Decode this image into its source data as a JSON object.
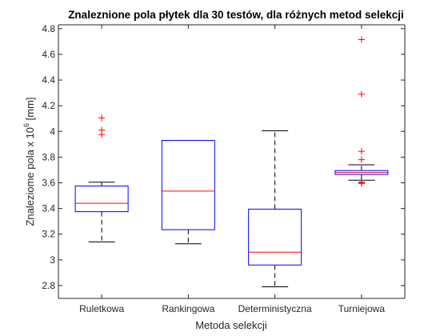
{
  "chart_data": {
    "type": "boxplot",
    "title": "Znaleznione pola płytek dla 30 testów, dla różnych metod selekcji",
    "xlabel": "Metoda selekcji",
    "ylabel_main": "Znaleziome pola x 10",
    "ylabel_exponent": "6",
    "ylabel_unit": " [mm]",
    "ylim": [
      2.7,
      4.83
    ],
    "yticks": [
      "2.8",
      "3",
      "3.2",
      "3.4",
      "3.6",
      "3.8",
      "4",
      "4.2",
      "4.4",
      "4.6",
      "4.8"
    ],
    "grid": false,
    "colors": {
      "box": "#0000ff",
      "median": "#ff0000",
      "whisker": "#000000",
      "outlier": "#ff0000"
    },
    "categories": [
      "Ruletkowa",
      "Rankingowa",
      "Deterministyczna",
      "Turniejowa"
    ],
    "boxes": [
      {
        "whisker_low": 3.14,
        "q1": 3.375,
        "median": 3.44,
        "q3": 3.575,
        "whisker_high": 3.605,
        "outliers": [
          3.975,
          4.01,
          4.105
        ]
      },
      {
        "whisker_low": 3.125,
        "q1": 3.235,
        "median": 3.535,
        "q3": 3.93,
        "whisker_high": 3.93,
        "outliers": []
      },
      {
        "whisker_low": 2.79,
        "q1": 2.96,
        "median": 3.06,
        "q3": 3.395,
        "whisker_high": 4.005,
        "outliers": []
      },
      {
        "whisker_low": 3.62,
        "q1": 3.665,
        "median": 3.68,
        "q3": 3.695,
        "whisker_high": 3.74,
        "outliers": [
          3.595,
          3.6,
          3.605,
          3.78,
          3.845,
          4.29,
          4.715
        ]
      }
    ]
  }
}
